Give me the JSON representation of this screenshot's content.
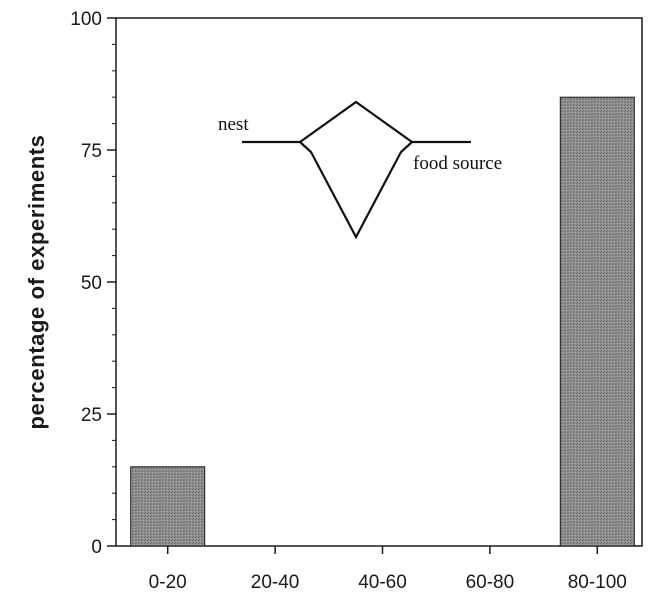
{
  "chart_data": {
    "type": "bar",
    "categories": [
      "0-20",
      "20-40",
      "40-60",
      "60-80",
      "80-100"
    ],
    "values": [
      15,
      0,
      0,
      0,
      85
    ],
    "title": "",
    "xlabel": "",
    "ylabel": "percentage of experiments",
    "ylim": [
      0,
      100
    ],
    "yticks": [
      0,
      25,
      50,
      75,
      100
    ],
    "grid": false,
    "colors": {
      "bar": "#8c8c8c",
      "axis": "#1a1a1a"
    }
  },
  "inset": {
    "nest_label": "nest",
    "food_label": "food source"
  }
}
